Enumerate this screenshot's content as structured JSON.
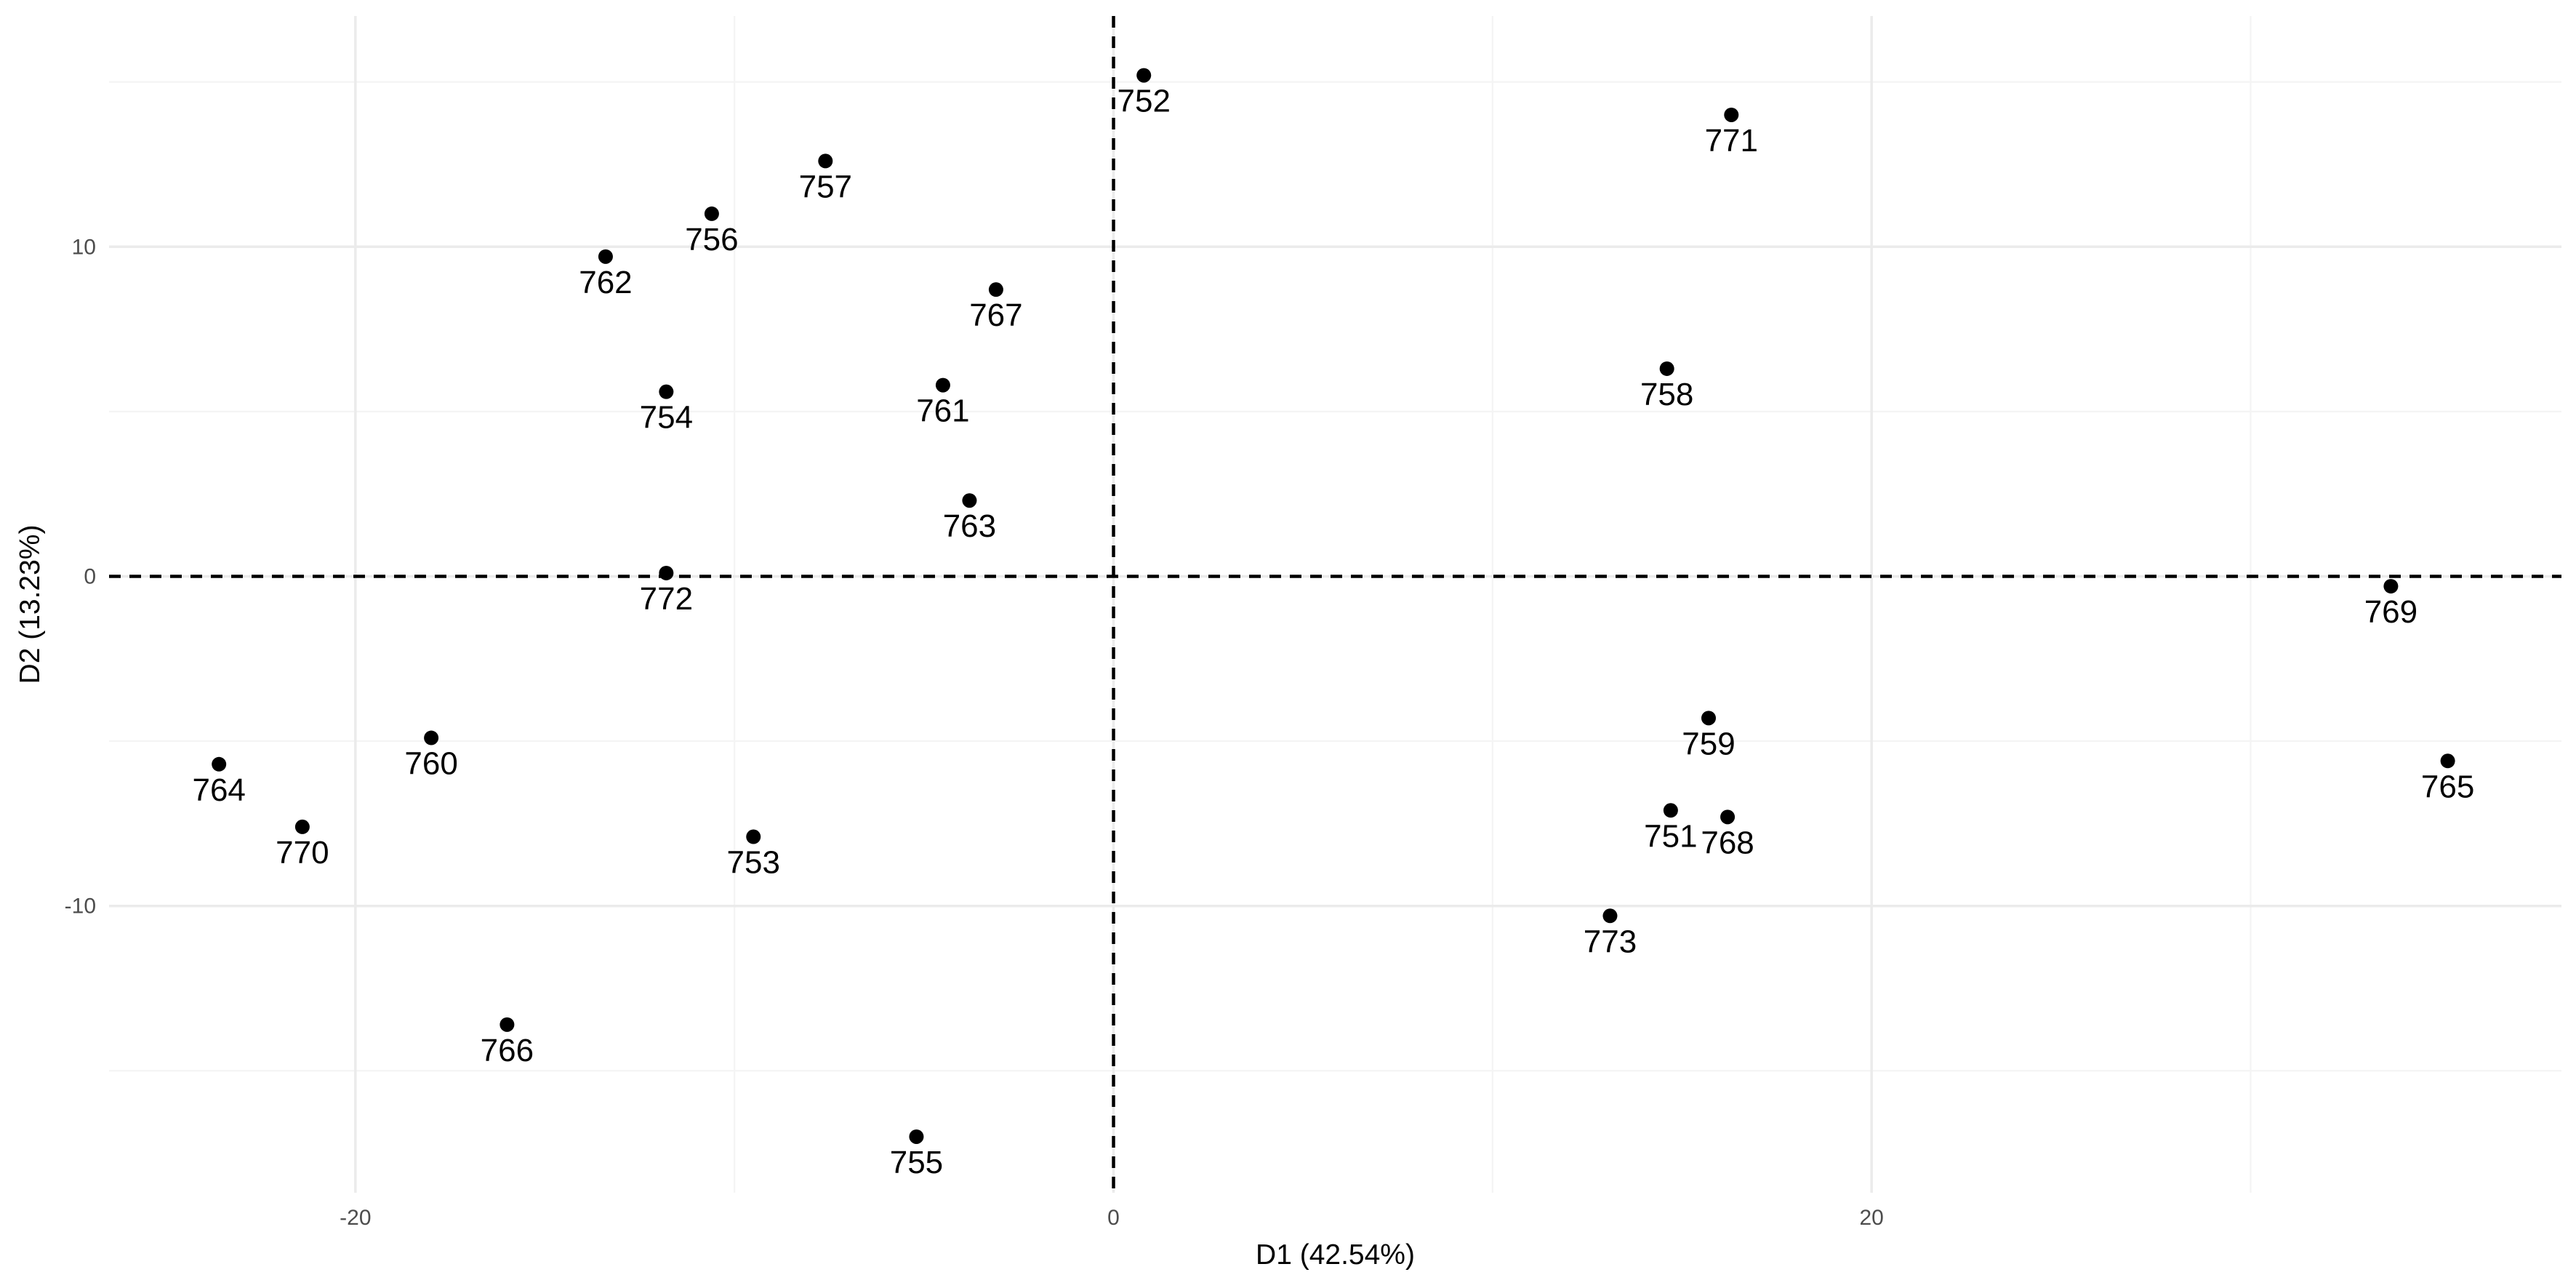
{
  "chart_data": {
    "type": "scatter",
    "xlabel": "D1 (42.54%)",
    "ylabel": "D2 (13.23%)",
    "xlim": [
      -26.5,
      38.2
    ],
    "ylim": [
      -18.7,
      17.0
    ],
    "x_ticks": [
      -20,
      0,
      20
    ],
    "x_tick_labels": [
      "-20",
      "0",
      "20"
    ],
    "y_ticks": [
      -10,
      0,
      10
    ],
    "y_tick_labels": [
      "-10",
      "0",
      "10"
    ],
    "x_minor_ticks": [
      -10,
      10,
      30
    ],
    "y_minor_ticks": [
      -15,
      -5,
      5,
      15
    ],
    "reference_lines": {
      "x": 0,
      "y": 0
    },
    "grid": true,
    "points": [
      {
        "label": "751",
        "x": 14.7,
        "y": -7.1
      },
      {
        "label": "752",
        "x": 0.8,
        "y": 15.2
      },
      {
        "label": "753",
        "x": -9.5,
        "y": -7.9
      },
      {
        "label": "754",
        "x": -11.8,
        "y": 5.6
      },
      {
        "label": "755",
        "x": -5.2,
        "y": -17.0
      },
      {
        "label": "756",
        "x": -10.6,
        "y": 11.0
      },
      {
        "label": "757",
        "x": -7.6,
        "y": 12.6
      },
      {
        "label": "758",
        "x": 14.6,
        "y": 6.3
      },
      {
        "label": "759",
        "x": 15.7,
        "y": -4.3
      },
      {
        "label": "760",
        "x": -18.0,
        "y": -4.9
      },
      {
        "label": "761",
        "x": -4.5,
        "y": 5.8
      },
      {
        "label": "762",
        "x": -13.4,
        "y": 9.7
      },
      {
        "label": "763",
        "x": -3.8,
        "y": 2.3
      },
      {
        "label": "764",
        "x": -23.6,
        "y": -5.7
      },
      {
        "label": "765",
        "x": 35.2,
        "y": -5.6
      },
      {
        "label": "766",
        "x": -16.0,
        "y": -13.6
      },
      {
        "label": "767",
        "x": -3.1,
        "y": 8.7
      },
      {
        "label": "768",
        "x": 16.2,
        "y": -7.3
      },
      {
        "label": "769",
        "x": 33.7,
        "y": -0.3
      },
      {
        "label": "770",
        "x": -21.4,
        "y": -7.6
      },
      {
        "label": "771",
        "x": 16.3,
        "y": 14.0
      },
      {
        "label": "772",
        "x": -11.8,
        "y": 0.1
      },
      {
        "label": "773",
        "x": 13.1,
        "y": -10.3
      }
    ]
  }
}
